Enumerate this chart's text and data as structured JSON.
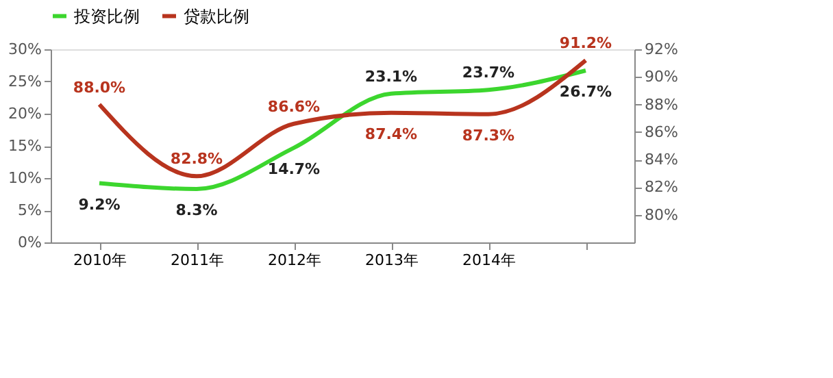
{
  "chart_data": {
    "type": "line",
    "categories": [
      "2010年",
      "2011年",
      "2012年",
      "2013年",
      "2014年",
      null
    ],
    "series": [
      {
        "name": "投资比例",
        "color": "#3cd62e",
        "values": [
          9.2,
          8.3,
          14.7,
          23.1,
          23.7,
          26.7
        ],
        "value_labels": [
          "9.2%",
          "8.3%",
          "14.7%",
          "23.1%",
          "23.7%",
          "26.7%"
        ]
      },
      {
        "name": "贷款比例",
        "color": "#b8341e",
        "axis": "y2",
        "values": [
          88.0,
          82.8,
          86.6,
          87.4,
          87.3,
          91.2
        ],
        "value_labels": [
          "88.0%",
          "82.8%",
          "86.6%",
          "87.4%",
          "87.3%",
          "91.2%"
        ]
      }
    ],
    "ylim": [
      0,
      30
    ],
    "yticks": [
      {
        "value": 0,
        "label": "0%"
      },
      {
        "value": 5,
        "label": "5%"
      },
      {
        "value": 10,
        "label": "10%"
      },
      {
        "value": 15,
        "label": "15%"
      },
      {
        "value": 20,
        "label": "20%"
      },
      {
        "value": 25,
        "label": "25%"
      },
      {
        "value": 30,
        "label": "30%"
      }
    ],
    "y2lim": [
      78,
      92
    ],
    "y2ticks": [
      {
        "value": 80,
        "label": "80%"
      },
      {
        "value": 82,
        "label": "82%"
      },
      {
        "value": 84,
        "label": "84%"
      },
      {
        "value": 86,
        "label": "86%"
      },
      {
        "value": 88,
        "label": "88%"
      },
      {
        "value": 90,
        "label": "90%"
      },
      {
        "value": 92,
        "label": "92%"
      }
    ],
    "legend": "top",
    "grid": false,
    "line_style": "solid"
  }
}
